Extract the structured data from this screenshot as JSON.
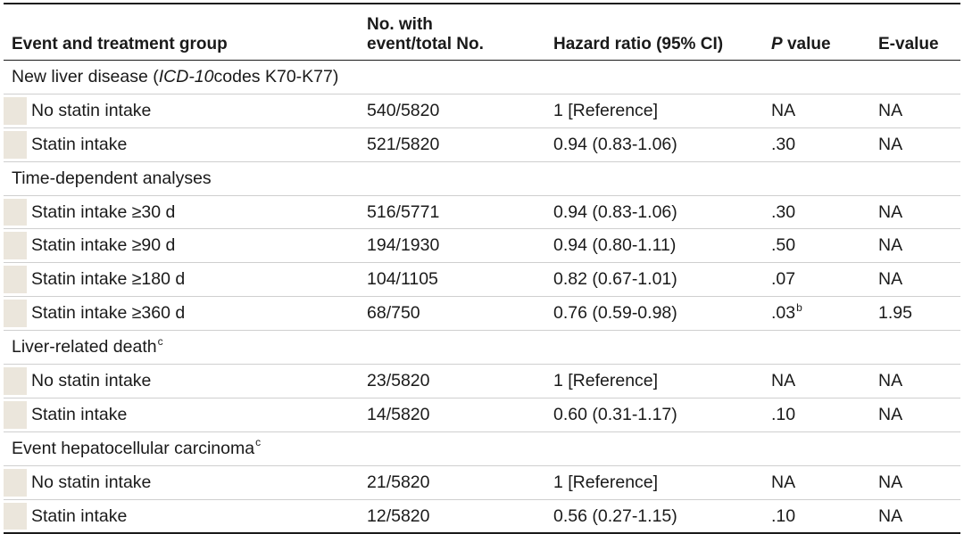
{
  "header": {
    "col0": "Event and treatment group",
    "col1_line1": "No. with",
    "col1_line2": "event/total No.",
    "col2": "Hazard ratio (95% CI)",
    "col3_italic": "P",
    "col3_rest": " value",
    "col4": "E-value"
  },
  "sections": [
    {
      "title_pre": "New liver disease (",
      "title_italic": "ICD-10",
      "title_post": " codes K70-K77)",
      "title_sup": "",
      "rows": [
        {
          "label": "No statin intake",
          "events": "540/5820",
          "hr": "1 [Reference]",
          "p": "NA",
          "p_sup": "",
          "e": "NA"
        },
        {
          "label": "Statin intake",
          "events": "521/5820",
          "hr": "0.94 (0.83-1.06)",
          "p": ".30",
          "p_sup": "",
          "e": "NA"
        }
      ]
    },
    {
      "title_pre": "Time-dependent analyses",
      "title_italic": "",
      "title_post": "",
      "title_sup": "",
      "rows": [
        {
          "label": "Statin intake ≥30 d",
          "events": "516/5771",
          "hr": "0.94 (0.83-1.06)",
          "p": ".30",
          "p_sup": "",
          "e": "NA"
        },
        {
          "label": "Statin intake ≥90 d",
          "events": "194/1930",
          "hr": "0.94 (0.80-1.11)",
          "p": ".50",
          "p_sup": "",
          "e": "NA"
        },
        {
          "label": "Statin intake ≥180 d",
          "events": "104/1105",
          "hr": "0.82 (0.67-1.01)",
          "p": ".07",
          "p_sup": "",
          "e": "NA"
        },
        {
          "label": "Statin intake ≥360 d",
          "events": "68/750",
          "hr": "0.76 (0.59-0.98)",
          "p": ".03",
          "p_sup": "b",
          "e": "1.95"
        }
      ]
    },
    {
      "title_pre": "Liver-related death",
      "title_italic": "",
      "title_post": "",
      "title_sup": "c",
      "rows": [
        {
          "label": "No statin intake",
          "events": "23/5820",
          "hr": "1 [Reference]",
          "p": "NA",
          "p_sup": "",
          "e": "NA"
        },
        {
          "label": "Statin intake",
          "events": "14/5820",
          "hr": "0.60 (0.31-1.17)",
          "p": ".10",
          "p_sup": "",
          "e": "NA"
        }
      ]
    },
    {
      "title_pre": "Event hepatocellular carcinoma",
      "title_italic": "",
      "title_post": "",
      "title_sup": "c",
      "rows": [
        {
          "label": "No statin intake",
          "events": "21/5820",
          "hr": "1 [Reference]",
          "p": "NA",
          "p_sup": "",
          "e": "NA"
        },
        {
          "label": "Statin intake",
          "events": "12/5820",
          "hr": "0.56 (0.27-1.15)",
          "p": ".10",
          "p_sup": "",
          "e": "NA"
        }
      ]
    }
  ],
  "colors": {
    "text": "#1a1a1a",
    "indent_shading": "#ebe6dc",
    "row_divider": "#cfcfcf"
  }
}
